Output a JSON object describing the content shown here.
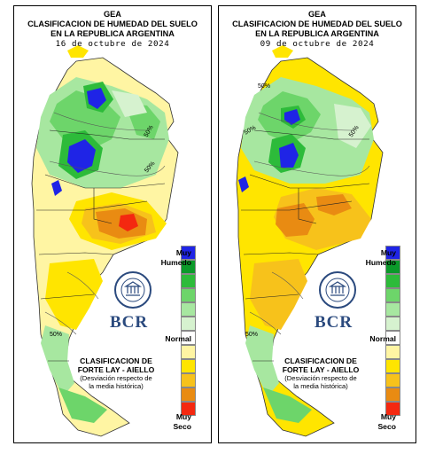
{
  "panels": [
    {
      "title1": "GEA",
      "title2": "CLASIFICACION DE HUMEDAD DEL SUELO",
      "title3": "EN LA REPUBLICA ARGENTINA",
      "date": "16 de octubre de 2024",
      "contour_label": "50%"
    },
    {
      "title1": "GEA",
      "title2": "CLASIFICACION DE HUMEDAD DEL SUELO",
      "title3": "EN LA REPUBLICA ARGENTINA",
      "date": "09 de octubre de 2024",
      "contour_label": "50%"
    }
  ],
  "legend": {
    "top_label_1": "Muy",
    "top_label_2": "Humedo",
    "middle_label": "Normal",
    "bottom_label_1": "Muy",
    "bottom_label_2": "Seco",
    "colors": [
      "#1f24e6",
      "#0b9a2a",
      "#2dbb3a",
      "#6dd56a",
      "#a7e7a0",
      "#d6f2cf",
      "#ffffff",
      "#fff5a3",
      "#ffe500",
      "#f7c21b",
      "#e98b12",
      "#f42810"
    ]
  },
  "method": {
    "line1": "CLASIFICACION DE",
    "line2": "FORTE LAY - AIELLO",
    "line3": "(Desviación respecto de",
    "line4": "la media histórica)"
  },
  "logo": {
    "text": "BCR",
    "seal_text": "BOLSA DE COMERCIO DE ROSARIO"
  }
}
